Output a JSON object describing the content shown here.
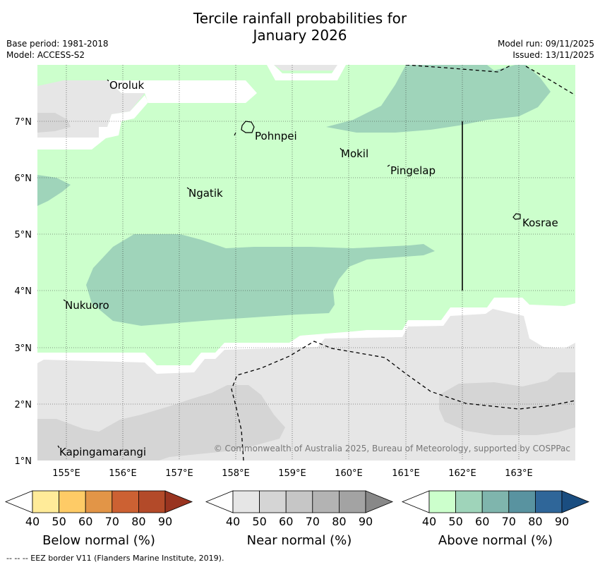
{
  "title_line1": "Tercile rainfall probabilities for",
  "title_line2": "January 2026",
  "meta": {
    "base_period": "Base period: 1981-2018",
    "model": "Model: ACCESS-S2",
    "model_run": "Model run: 09/11/2025",
    "issued": "Issued: 13/11/2025"
  },
  "axes": {
    "lat_labels": [
      "7°N",
      "6°N",
      "5°N",
      "4°N",
      "3°N",
      "2°N",
      "1°N"
    ],
    "lon_labels": [
      "155°E",
      "156°E",
      "157°E",
      "158°E",
      "159°E",
      "160°E",
      "161°E",
      "162°E",
      "163°E"
    ]
  },
  "places": {
    "oroluk": "Oroluk",
    "pohnpei": "Pohnpei",
    "mokil": "Mokil",
    "pingelap": "Pingelap",
    "ngatik": "Ngatik",
    "kosrae": "Kosrae",
    "nukuoro": "Nukuoro",
    "kapingamarangi": "Kapingamarangi"
  },
  "copyright": "© Commonwealth of Australia 2025, Bureau of Meteorology, supported by COSPPac",
  "colorbars": [
    {
      "name": "Below normal (%)",
      "ticks": [
        "40",
        "50",
        "60",
        "70",
        "80",
        "90"
      ],
      "colors": [
        "#ffffff",
        "#ffeb99",
        "#fecb66",
        "#e29547",
        "#cc6133",
        "#b34a29",
        "#993420"
      ]
    },
    {
      "name": "Near normal (%)",
      "ticks": [
        "40",
        "50",
        "60",
        "70",
        "80",
        "90"
      ],
      "colors": [
        "#ffffff",
        "#e6e6e6",
        "#d5d5d5",
        "#c6c6c6",
        "#b3b3b3",
        "#a3a3a3",
        "#888888"
      ]
    },
    {
      "name": "Above normal (%)",
      "ticks": [
        "40",
        "50",
        "60",
        "70",
        "80",
        "90"
      ],
      "colors": [
        "#ffffff",
        "#ccffcc",
        "#9fd4ba",
        "#7fb5ad",
        "#5993a0",
        "#2f6699",
        "#1a4d80"
      ]
    }
  ],
  "footer": "--  --  -- EEZ border V11 (Flanders Marine Institute, 2019)."
}
